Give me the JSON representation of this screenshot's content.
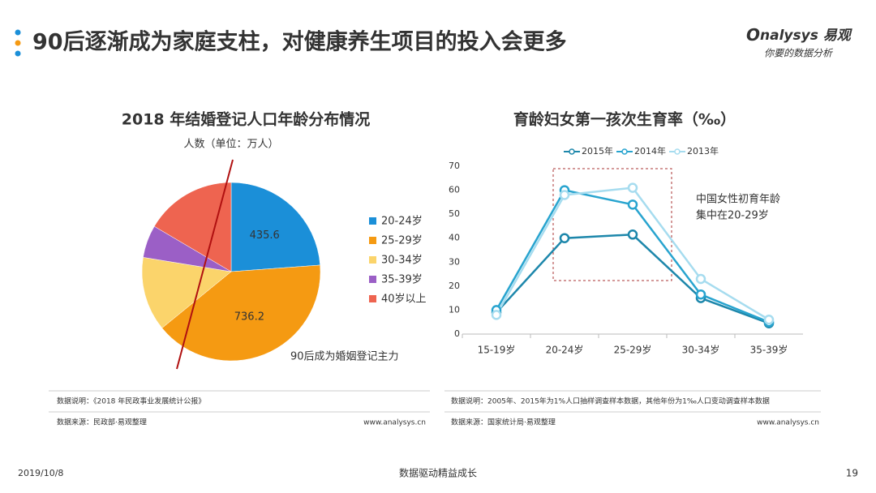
{
  "header": {
    "title": "90后逐渐成为家庭支柱，对健康养生项目的投入会更多",
    "logo": "nalysys 易观",
    "slogan": "你要的数据分析"
  },
  "chart_data": [
    {
      "type": "pie",
      "title": "2018 年结婚登记人口年龄分布情况",
      "unit_label": "人数（单位：万人）",
      "categories": [
        "20-24岁",
        "25-29岁",
        "30-34岁",
        "35-39岁",
        "40岁以上"
      ],
      "values": [
        435.6,
        736.2,
        246,
        108,
        302
      ],
      "show_value_labels": [
        true,
        true,
        false,
        false,
        false
      ],
      "colors": [
        "#1b8fd8",
        "#f59a12",
        "#fbd46b",
        "#9b5fc6",
        "#ee6450"
      ],
      "annotation": "90后成为婚姻登记主力",
      "legend": "right"
    },
    {
      "type": "line",
      "title": "育龄妇女第一孩次生育率（‰）",
      "categories": [
        "15-19岁",
        "20-24岁",
        "25-29岁",
        "30-34岁",
        "35-39岁"
      ],
      "series": [
        {
          "name": "2015年",
          "color": "#1d87ab",
          "values": [
            9,
            40,
            41.5,
            15,
            4.5
          ]
        },
        {
          "name": "2014年",
          "color": "#28a4cf",
          "values": [
            10,
            60,
            54,
            16.5,
            5
          ]
        },
        {
          "name": "2013年",
          "color": "#a6dcef",
          "values": [
            8,
            58,
            61,
            23,
            6
          ]
        }
      ],
      "ylim": [
        0,
        70
      ],
      "yticks": [
        0,
        10,
        20,
        30,
        40,
        50,
        60,
        70
      ],
      "grid": false,
      "legend": "top",
      "annotation": [
        "中国女性初育年龄",
        "集中在20-29岁"
      ]
    }
  ],
  "notes": [
    {
      "explain": "数据说明：《2018 年民政事业发展统计公报》",
      "source": "数据来源：民政部·易观整理",
      "site": "www.analysys.cn"
    },
    {
      "explain": "数据说明：2005年、2015年为1%人口抽样调查样本数据，其他年份为1‰人口变动调查样本数据",
      "source": "数据来源：国家统计局·易观整理",
      "site": "www.analysys.cn"
    }
  ],
  "footer": {
    "date": "2019/10/8",
    "slogan": "数据驱动精益成长",
    "page": "19"
  }
}
